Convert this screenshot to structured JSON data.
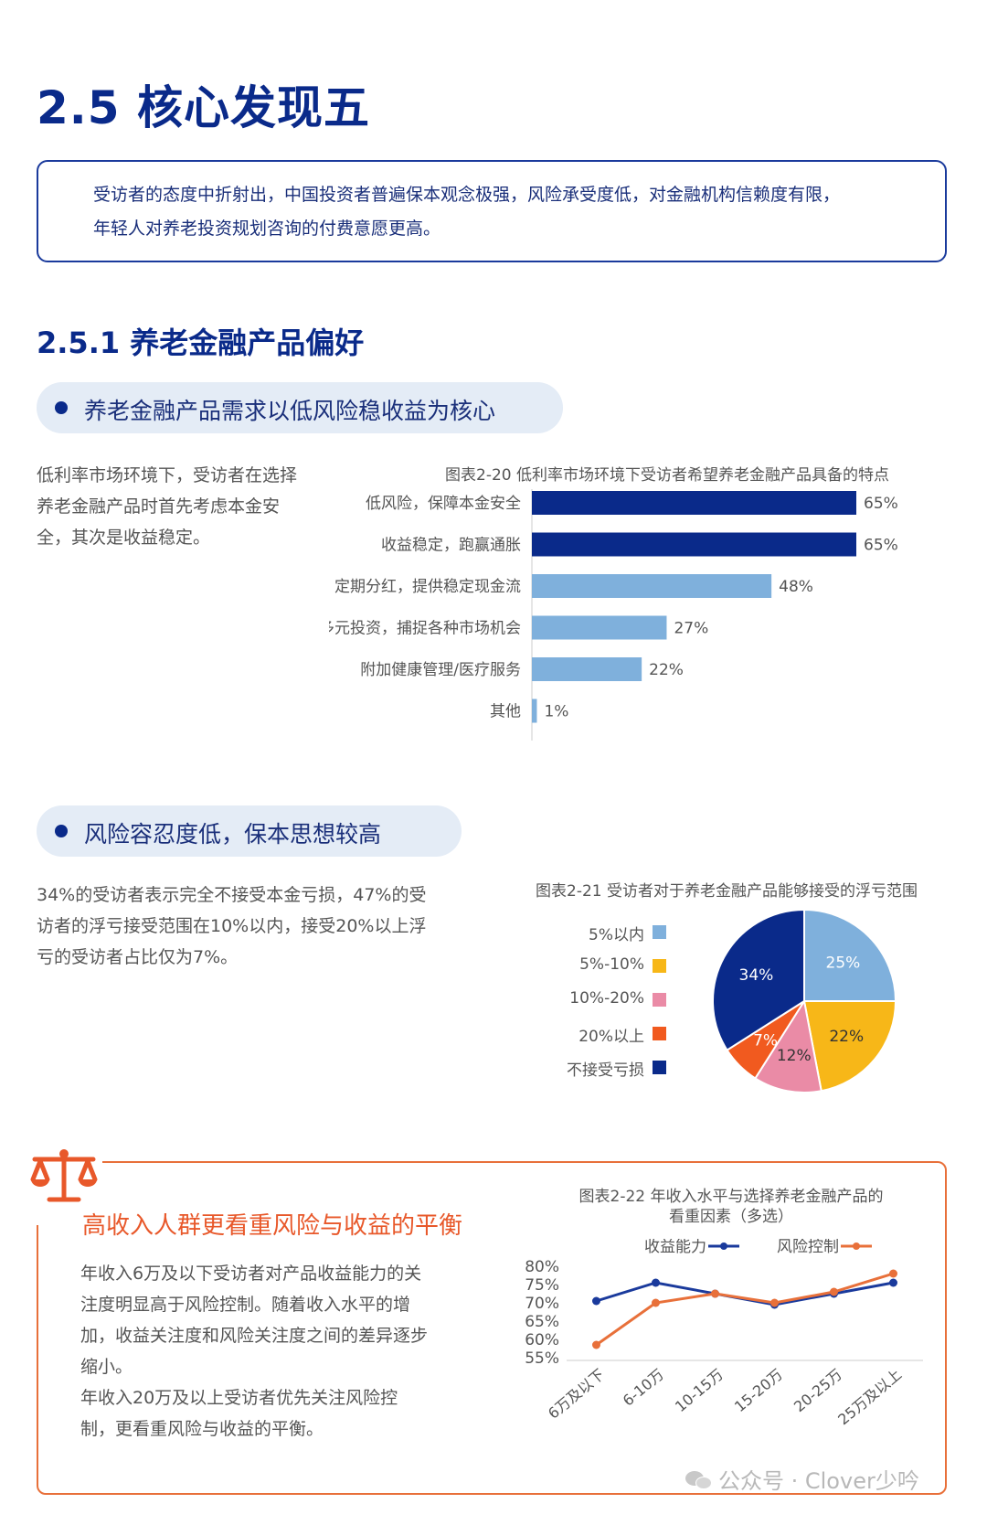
{
  "section": {
    "title": "2.5 核心发现五",
    "summary_line1": "受访者的态度中折射出，中国投资者普遍保本观念极强，风险承受度低，对金融机构信赖度有限，",
    "summary_line2": "年轻人对养老投资规划咨询的付费意愿更高。"
  },
  "subsection": {
    "title": "2.5.1 养老金融产品偏好"
  },
  "finding1": {
    "heading": "养老金融产品需求以低风险稳收益为核心",
    "para_line1": "低利率市场环境下，受访者在选择",
    "para_line2": "养老金融产品时首先考虑本金安",
    "para_line3": "全，其次是收益稳定。"
  },
  "finding2": {
    "heading": "风险容忍度低，保本思想较高",
    "para_line1": "34%的受访者表示完全不接受本金亏损，47%的受",
    "para_line2": "访者的浮亏接受范围在10%以内，接受20%以上浮",
    "para_line3": "亏的受访者占比仅为7%。"
  },
  "finding3": {
    "heading": "高收入人群更看重风险与收益的平衡",
    "para_line1": "年收入6万及以下受访者对产品收益能力的关",
    "para_line2": "注度明显高于风险控制。随着收入水平的增",
    "para_line3": "加，收益关注度和风险关注度之间的差异逐步",
    "para_line4": "缩小。",
    "para_line5": "年收入20万及以上受访者优先关注风险控",
    "para_line6": "制，更看重风险与收益的平衡。"
  },
  "watermark": "公众号 · Clover少吟",
  "chart_data": [
    {
      "type": "bar",
      "orientation": "horizontal",
      "title": "图表2-20 低利率市场环境下受访者希望养老金融产品具备的特点",
      "categories": [
        "低风险，保障本金安全",
        "收益稳定，跑赢通胀",
        "定期分红，提供稳定现金流",
        "多元投资，捕捉各种市场机会",
        "附加健康管理/医疗服务",
        "其他"
      ],
      "values": [
        65,
        65,
        48,
        27,
        22,
        1
      ],
      "labels": [
        "65%",
        "65%",
        "48%",
        "27%",
        "22%",
        "1%"
      ],
      "bar_colors": [
        "#0a2a8a",
        "#0a2a8a",
        "#7fb0dc",
        "#7fb0dc",
        "#7fb0dc",
        "#7fb0dc"
      ],
      "xlim": [
        0,
        65
      ]
    },
    {
      "type": "pie",
      "title": "图表2-21 受访者对于养老金融产品能够接受的浮亏范围",
      "labels": [
        "5%以内",
        "5%-10%",
        "10%-20%",
        "20%以上",
        "不接受亏损"
      ],
      "values": [
        25,
        22,
        12,
        7,
        34
      ],
      "value_labels": [
        "25%",
        "22%",
        "12%",
        "7%",
        "34%"
      ],
      "colors": [
        "#7fb0dc",
        "#f7b718",
        "#ea8ba6",
        "#f15a1f",
        "#0a2a8a"
      ],
      "legend_position": "left"
    },
    {
      "type": "line",
      "title_line1": "图表2-22 年收入水平与选择养老金融产品的",
      "title_line2": "看重因素（多选）",
      "categories": [
        "6万及以下",
        "6-10万",
        "10-15万",
        "15-20万",
        "20-25万",
        "25万及以上"
      ],
      "series": [
        {
          "name": "收益能力",
          "values": [
            70.5,
            75.5,
            72.5,
            69.5,
            72.5,
            75.5
          ],
          "color": "#1a3a9c"
        },
        {
          "name": "风险控制",
          "values": [
            58.5,
            70,
            72.5,
            70,
            73,
            78
          ],
          "color": "#e8703a"
        }
      ],
      "yticks": [
        "80%",
        "75%",
        "70%",
        "65%",
        "60%",
        "55%"
      ],
      "ylim": [
        55,
        80
      ],
      "legend_position": "top"
    }
  ]
}
